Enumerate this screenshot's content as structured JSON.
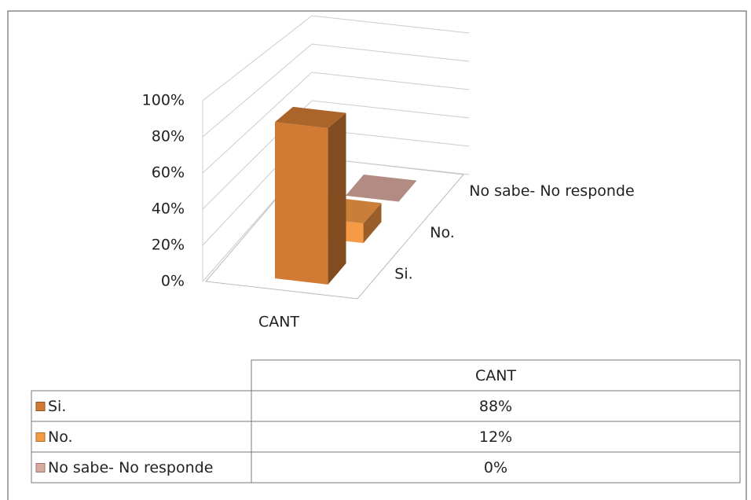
{
  "chart_data": {
    "type": "bar3d",
    "categories": [
      "CANT"
    ],
    "series": [
      {
        "name": "Si.",
        "color": "#d07a33",
        "values": [
          88
        ],
        "value_labels": [
          "88%"
        ]
      },
      {
        "name": "No.",
        "color": "#f79a45",
        "values": [
          12
        ],
        "value_labels": [
          "12%"
        ]
      },
      {
        "name": "No sabe- No responde",
        "color": "#d9aa9e",
        "values": [
          0
        ],
        "value_labels": [
          "0%"
        ]
      }
    ],
    "ylim": [
      0,
      100
    ],
    "yticks": [
      {
        "value": 0,
        "label": "0%"
      },
      {
        "value": 20,
        "label": "20%"
      },
      {
        "value": 40,
        "label": "40%"
      },
      {
        "value": 60,
        "label": "60%"
      },
      {
        "value": 80,
        "label": "80%"
      },
      {
        "value": 100,
        "label": "100%"
      }
    ],
    "grid": true,
    "data_table": true
  }
}
